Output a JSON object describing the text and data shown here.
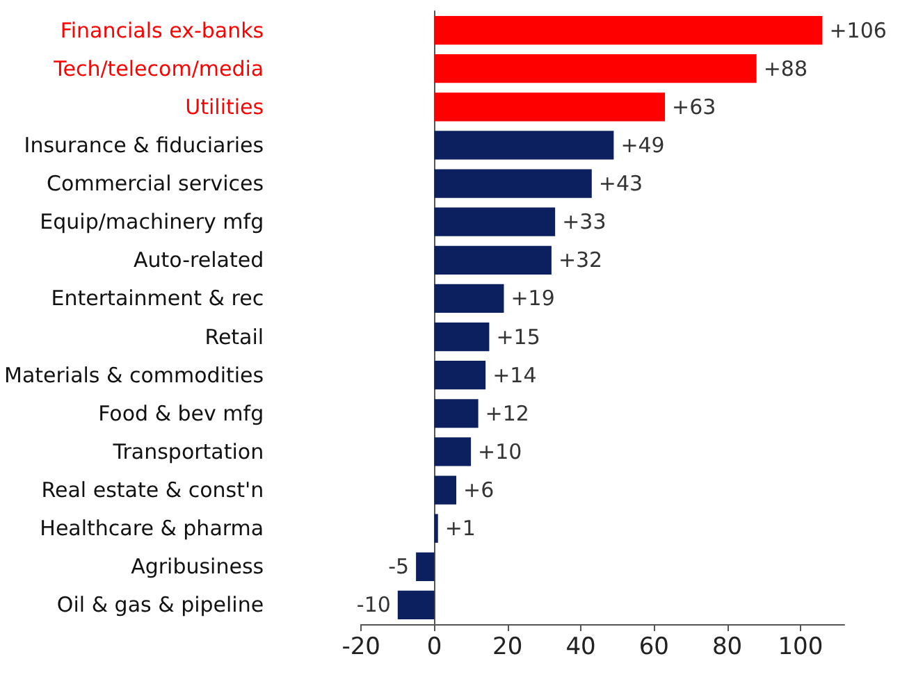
{
  "chart_data": {
    "type": "bar",
    "orientation": "horizontal",
    "categories": [
      "Financials ex-banks",
      "Tech/telecom/media",
      "Utilities",
      "Insurance & fiduciaries",
      "Commercial services",
      "Equip/machinery mfg",
      "Auto-related",
      "Entertainment & rec",
      "Retail",
      "Materials & commodities",
      "Food & bev mfg",
      "Transportation",
      "Real estate & const'n",
      "Healthcare & pharma",
      "Agribusiness",
      "Oil & gas & pipeline"
    ],
    "values": [
      106,
      88,
      63,
      49,
      43,
      33,
      32,
      19,
      15,
      14,
      12,
      10,
      6,
      1,
      -5,
      -10
    ],
    "value_labels": [
      "+106",
      "+88",
      "+63",
      "+49",
      "+43",
      "+33",
      "+32",
      "+19",
      "+15",
      "+14",
      "+12",
      "+10",
      "+6",
      "+1",
      "-5",
      "-10"
    ],
    "colors": [
      "#ff0000",
      "#ff0000",
      "#ff0000",
      "#0c1f5e",
      "#0c1f5e",
      "#0c1f5e",
      "#0c1f5e",
      "#0c1f5e",
      "#0c1f5e",
      "#0c1f5e",
      "#0c1f5e",
      "#0c1f5e",
      "#0c1f5e",
      "#0c1f5e",
      "#0c1f5e",
      "#0c1f5e"
    ],
    "xlim": [
      -20,
      112
    ],
    "xticks": [
      -20,
      0,
      20,
      40,
      60,
      80,
      100
    ]
  }
}
